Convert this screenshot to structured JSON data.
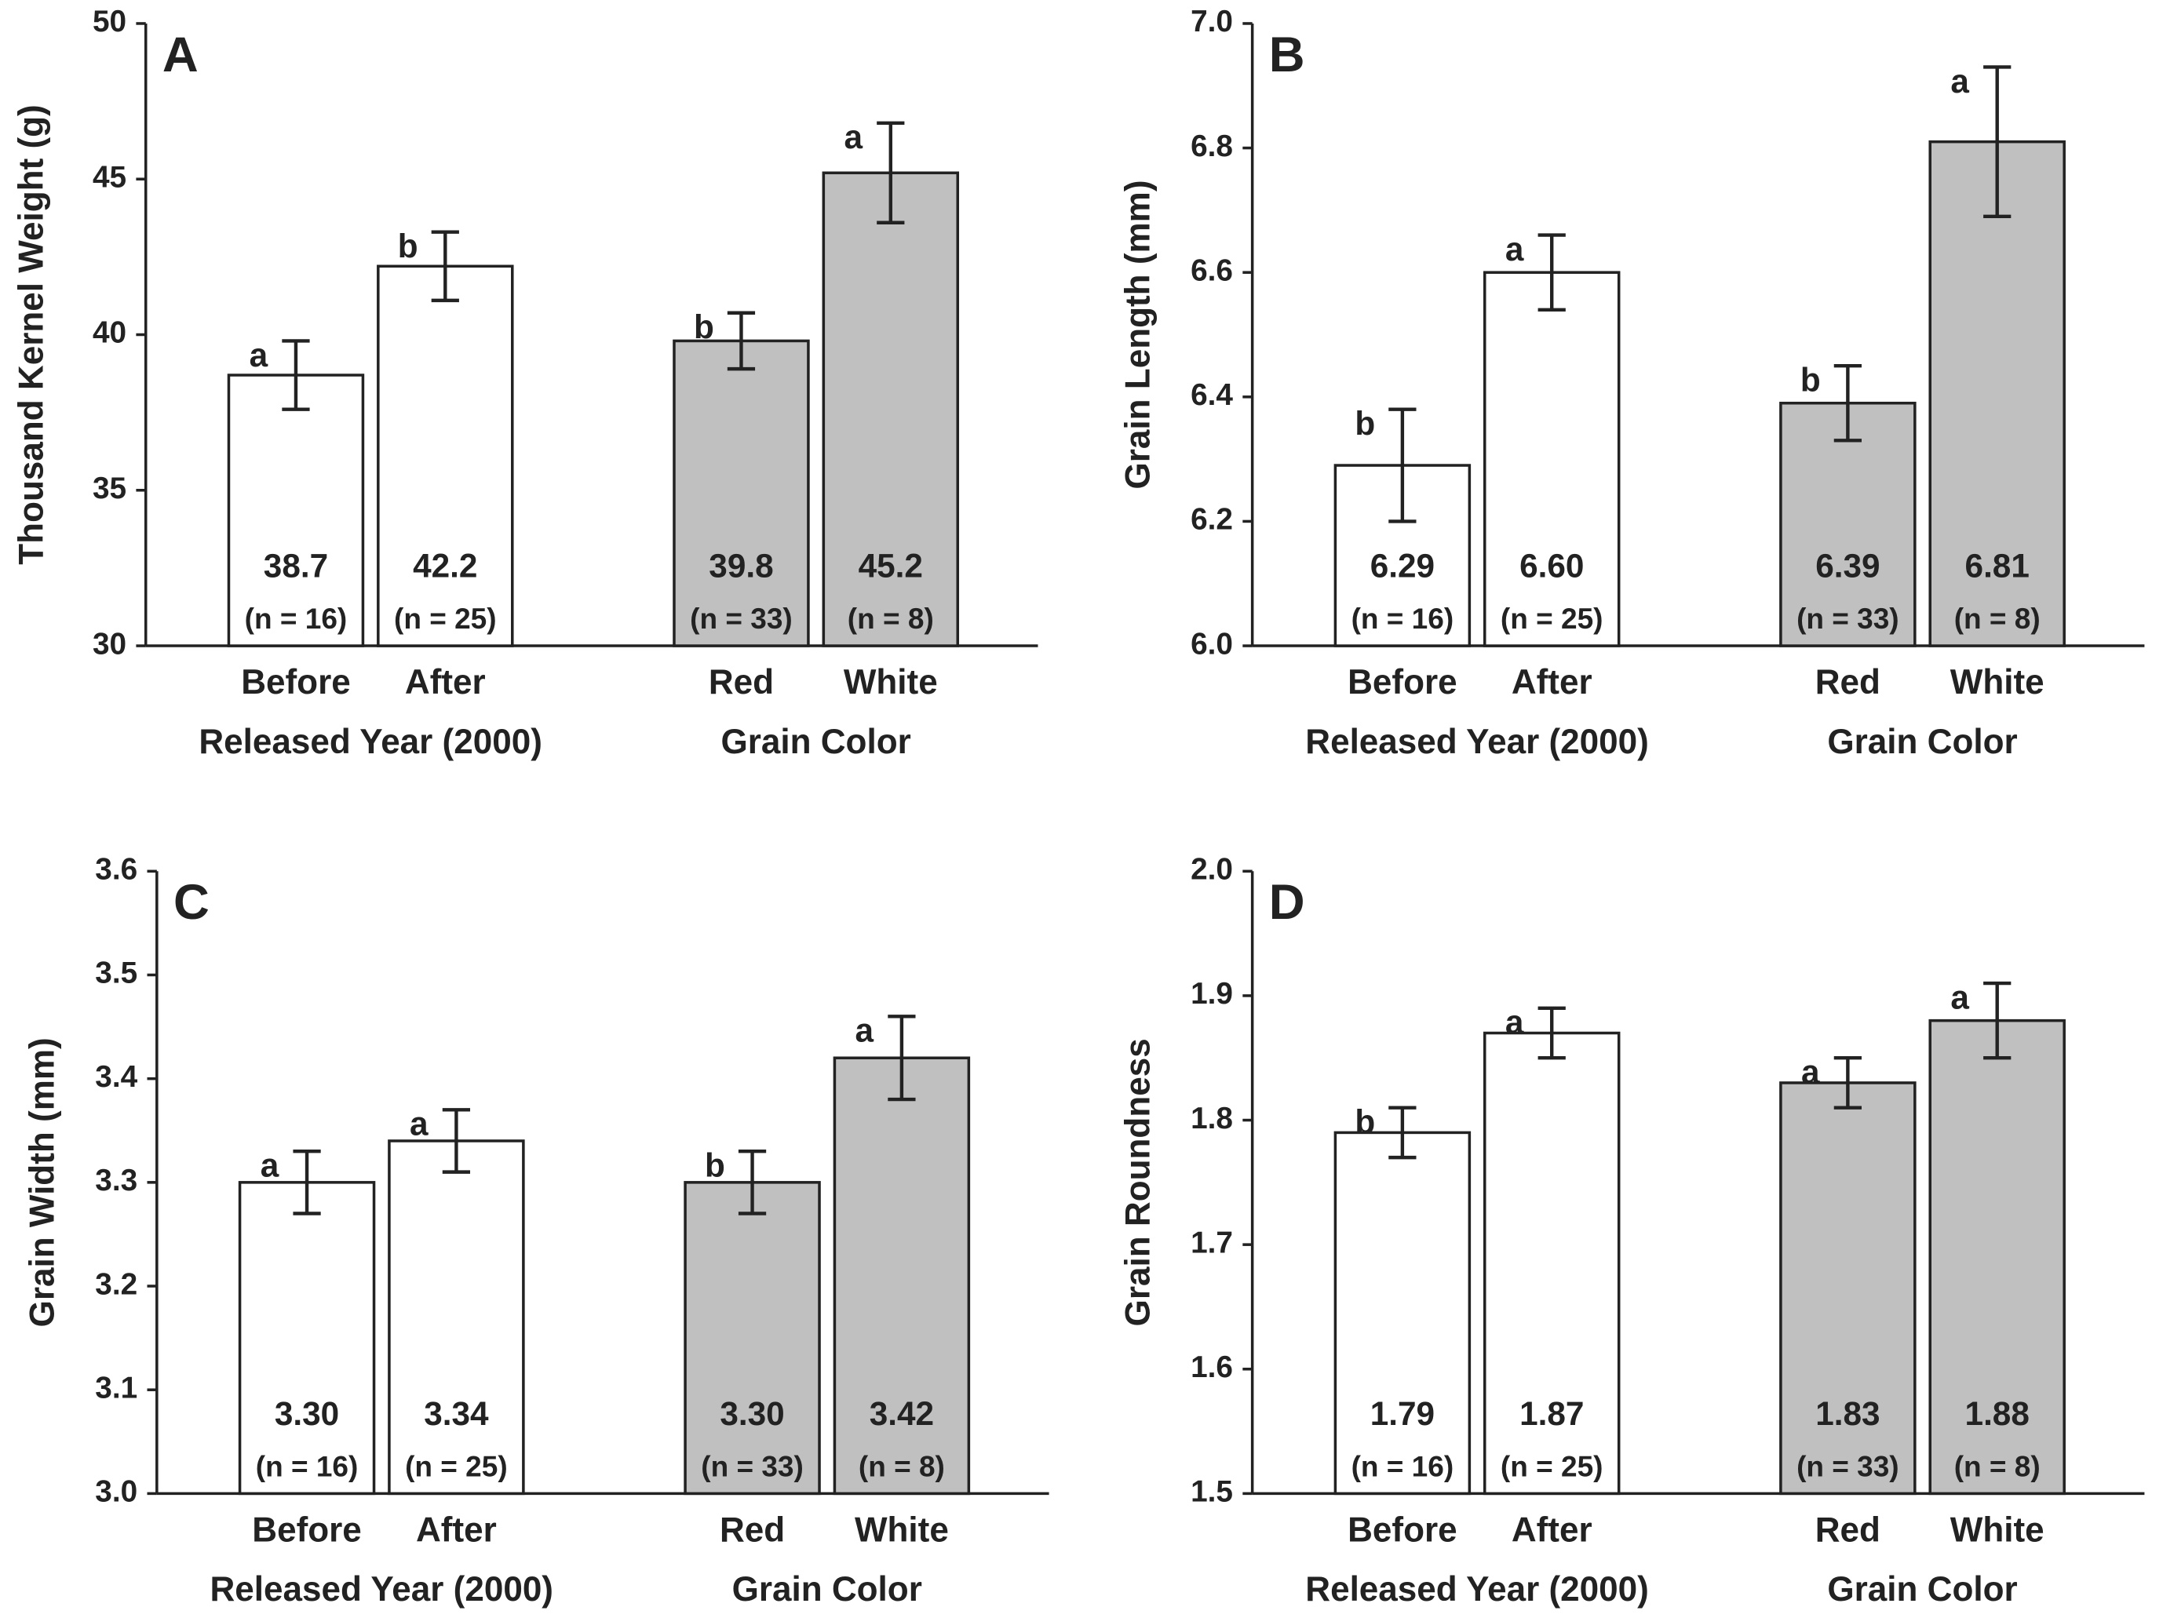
{
  "chart_data": [
    {
      "type": "bar",
      "panel_label": "A",
      "ylabel": "Thousand Kernel Weight (g)",
      "ylim": [
        30,
        50
      ],
      "yticks": [
        30,
        35,
        40,
        45,
        50
      ],
      "groups": [
        {
          "name": "Released Year (2000)",
          "categories": [
            "Before",
            "After"
          ],
          "values": [
            38.7,
            42.2
          ],
          "value_labels": [
            "38.7",
            "42.2"
          ],
          "errors": [
            1.1,
            1.1
          ],
          "letters": [
            "a",
            "b"
          ],
          "n_labels": [
            "(n = 16)",
            "(n = 25)"
          ],
          "color": "#ffffff"
        },
        {
          "name": "Grain Color",
          "categories": [
            "Red",
            "White"
          ],
          "values": [
            39.8,
            45.2
          ],
          "value_labels": [
            "39.8",
            "45.2"
          ],
          "errors": [
            0.9,
            1.6
          ],
          "letters": [
            "b",
            "a"
          ],
          "n_labels": [
            "(n = 33)",
            "(n = 8)"
          ],
          "color": "#c0c0c0"
        }
      ]
    },
    {
      "type": "bar",
      "panel_label": "B",
      "ylabel": "Grain Length (mm)",
      "ylim": [
        6.0,
        7.0
      ],
      "yticks": [
        {
          "value": 6.0,
          "label": "6.0"
        },
        6.2,
        6.4,
        6.6,
        6.8,
        {
          "value": 7.0,
          "label": "7.0"
        }
      ],
      "groups": [
        {
          "name": "Released Year (2000)",
          "categories": [
            "Before",
            "After"
          ],
          "values": [
            6.29,
            6.6
          ],
          "value_labels": [
            "6.29",
            "6.60"
          ],
          "errors": [
            0.09,
            0.06
          ],
          "letters": [
            "b",
            "a"
          ],
          "n_labels": [
            "(n = 16)",
            "(n = 25)"
          ],
          "color": "#ffffff"
        },
        {
          "name": "Grain Color",
          "categories": [
            "Red",
            "White"
          ],
          "values": [
            6.39,
            6.81
          ],
          "value_labels": [
            "6.39",
            "6.81"
          ],
          "errors": [
            0.06,
            0.12
          ],
          "letters": [
            "b",
            "a"
          ],
          "n_labels": [
            "(n = 33)",
            "(n = 8)"
          ],
          "color": "#c0c0c0"
        }
      ]
    },
    {
      "type": "bar",
      "panel_label": "C",
      "ylabel": "Grain Width (mm)",
      "ylim": [
        3.0,
        3.6
      ],
      "yticks": [
        {
          "value": 3.0,
          "label": "3.0"
        },
        3.1,
        3.2,
        3.3,
        3.4,
        3.5,
        3.6
      ],
      "groups": [
        {
          "name": "Released Year (2000)",
          "categories": [
            "Before",
            "After"
          ],
          "values": [
            3.3,
            3.34
          ],
          "value_labels": [
            "3.30",
            "3.34"
          ],
          "errors": [
            0.03,
            0.03
          ],
          "letters": [
            "a",
            "a"
          ],
          "n_labels": [
            "(n = 16)",
            "(n = 25)"
          ],
          "color": "#ffffff"
        },
        {
          "name": "Grain Color",
          "categories": [
            "Red",
            "White"
          ],
          "values": [
            3.3,
            3.42
          ],
          "value_labels": [
            "3.30",
            "3.42"
          ],
          "errors": [
            0.03,
            0.04
          ],
          "letters": [
            "b",
            "a"
          ],
          "n_labels": [
            "(n = 33)",
            "(n = 8)"
          ],
          "color": "#c0c0c0"
        }
      ]
    },
    {
      "type": "bar",
      "panel_label": "D",
      "ylabel": "Grain Roundness",
      "ylim": [
        1.5,
        2.0
      ],
      "yticks": [
        1.5,
        1.6,
        1.7,
        1.8,
        1.9,
        {
          "value": 2.0,
          "label": "2.0"
        }
      ],
      "groups": [
        {
          "name": "Released Year (2000)",
          "categories": [
            "Before",
            "After"
          ],
          "values": [
            1.79,
            1.87
          ],
          "value_labels": [
            "1.79",
            "1.87"
          ],
          "errors": [
            0.02,
            0.02
          ],
          "letters": [
            "b",
            "a"
          ],
          "n_labels": [
            "(n = 16)",
            "(n = 25)"
          ],
          "color": "#ffffff"
        },
        {
          "name": "Grain Color",
          "categories": [
            "Red",
            "White"
          ],
          "values": [
            1.83,
            1.88
          ],
          "value_labels": [
            "1.83",
            "1.88"
          ],
          "errors": [
            0.02,
            0.03
          ],
          "letters": [
            "a",
            "a"
          ],
          "n_labels": [
            "(n = 33)",
            "(n = 8)"
          ],
          "color": "#c0c0c0"
        }
      ]
    }
  ]
}
